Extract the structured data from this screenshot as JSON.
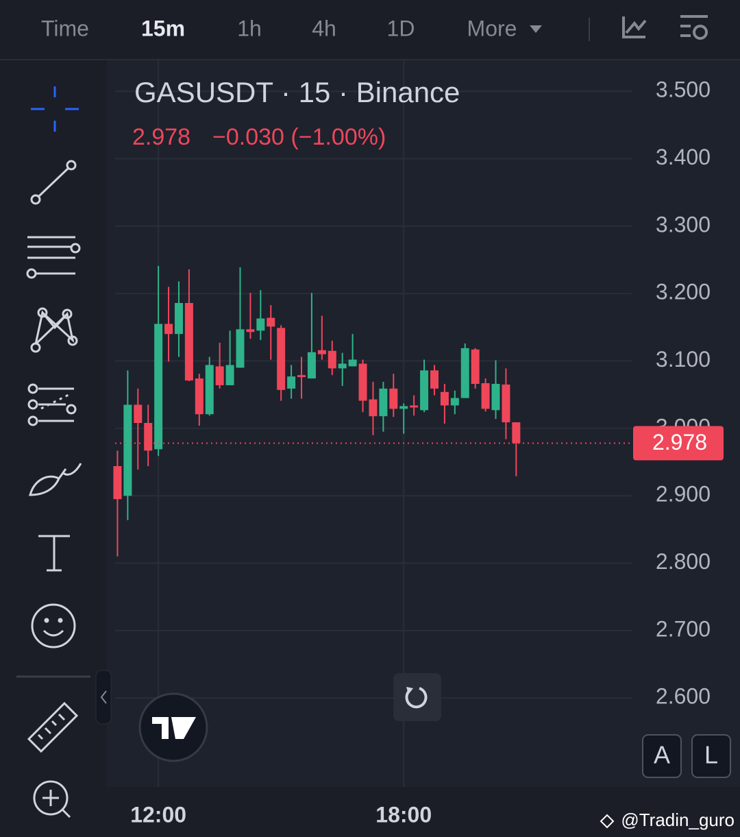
{
  "toolbar": {
    "intervals": [
      "Time",
      "15m",
      "1h",
      "4h",
      "1D",
      "More"
    ]
  },
  "chart_data": {
    "type": "candlestick",
    "title": "GASUSDT · 15 · Binance",
    "last_price": 2.978,
    "change_text": "−0.030 (−1.00%)",
    "categories": [
      null,
      null,
      null,
      null,
      "12:00",
      null,
      null,
      null,
      null,
      null,
      null,
      null,
      null,
      null,
      null,
      null,
      null,
      null,
      null,
      null,
      null,
      null,
      null,
      null,
      null,
      null,
      null,
      null,
      "18:00",
      null,
      null,
      null,
      null,
      null,
      null,
      null,
      null,
      null,
      null,
      null
    ],
    "open": [
      2.944,
      2.9,
      3.035,
      3.008,
      2.969,
      3.155,
      3.14,
      3.186,
      3.074,
      3.021,
      3.092,
      3.064,
      3.09,
      3.147,
      3.145,
      3.164,
      3.149,
      3.059,
      3.079,
      3.074,
      3.116,
      3.115,
      3.089,
      3.092,
      3.096,
      3.043,
      3.018,
      3.059,
      3.029,
      3.034,
      3.027,
      3.086,
      3.054,
      3.034,
      3.045,
      3.117,
      3.067,
      3.027,
      3.065,
      3.009
    ],
    "high": [
      2.967,
      3.086,
      3.059,
      3.035,
      3.241,
      3.21,
      3.218,
      3.236,
      3.081,
      3.106,
      3.127,
      3.145,
      3.239,
      3.201,
      3.205,
      3.183,
      3.153,
      3.094,
      3.106,
      3.201,
      3.167,
      3.13,
      3.112,
      3.14,
      3.102,
      3.069,
      3.069,
      3.081,
      3.037,
      3.049,
      3.102,
      3.094,
      3.066,
      3.056,
      3.126,
      3.119,
      3.074,
      3.101,
      3.089,
      3.009
    ],
    "low": [
      2.81,
      2.864,
      2.939,
      2.944,
      2.959,
      3.099,
      3.106,
      3.07,
      3.004,
      3.019,
      3.059,
      3.064,
      3.09,
      3.133,
      3.131,
      3.102,
      3.041,
      3.044,
      3.044,
      3.074,
      3.102,
      3.079,
      3.063,
      3.092,
      3.024,
      2.99,
      2.995,
      3.017,
      2.992,
      3.019,
      3.024,
      3.049,
      3.007,
      3.021,
      3.045,
      3.059,
      3.025,
      3.014,
      2.984,
      2.929
    ],
    "close": [
      2.895,
      3.035,
      3.008,
      2.967,
      3.155,
      3.14,
      3.186,
      3.071,
      3.021,
      3.094,
      3.064,
      3.094,
      3.147,
      3.143,
      3.163,
      3.151,
      3.057,
      3.077,
      3.076,
      3.113,
      3.11,
      3.089,
      3.096,
      3.102,
      3.041,
      3.018,
      3.059,
      3.029,
      3.033,
      3.031,
      3.086,
      3.059,
      3.034,
      3.045,
      3.119,
      3.066,
      3.029,
      3.066,
      3.009,
      2.978
    ],
    "up_color": "#2fb38a",
    "down_color": "#f0465a",
    "ylim": [
      2.468,
      3.546
    ],
    "yticks": [
      {
        "value": 2.6,
        "label": "2.600"
      },
      {
        "value": 2.7,
        "label": "2.700"
      },
      {
        "value": 2.8,
        "label": "2.800"
      },
      {
        "value": 2.9,
        "label": "2.900"
      },
      {
        "value": 3.0,
        "label": "3.000"
      },
      {
        "value": 3.1,
        "label": "3.100"
      },
      {
        "value": 3.2,
        "label": "3.200"
      },
      {
        "value": 3.3,
        "label": "3.300"
      },
      {
        "value": 3.4,
        "label": "3.400"
      },
      {
        "value": 3.5,
        "label": "3.500"
      }
    ],
    "grid": true
  },
  "buttons": {
    "auto": "A",
    "log": "L"
  },
  "watermark": "@Tradin_guro"
}
